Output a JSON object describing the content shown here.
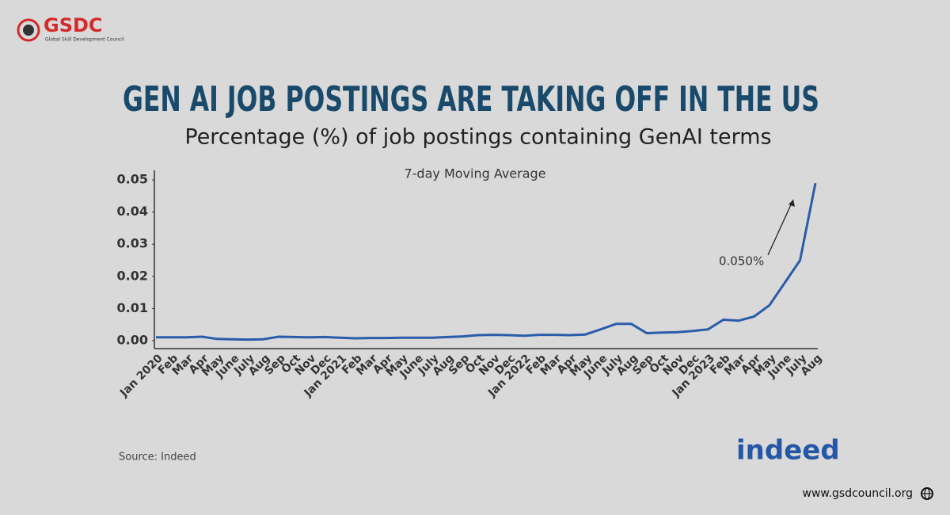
{
  "page": {
    "logo": "GSDC",
    "logo_tagline": "Global Skill Development Council",
    "brand": "indeed",
    "website": "www.gsdcouncil.org"
  },
  "chart_data": {
    "type": "line",
    "title": "GEN AI JOB POSTINGS ARE TAKING OFF IN THE US",
    "subtitle": "Percentage (%) of job postings containing GenAI terms",
    "note": "7-day Moving Average",
    "annotation": "0.050%",
    "source": "Source: Indeed",
    "categories": [
      "Jan 2020",
      "Feb",
      "Mar",
      "Apr",
      "May",
      "June",
      "July",
      "Aug",
      "Sep",
      "Oct",
      "Nov",
      "Dec",
      "Jan 2021",
      "Feb",
      "Mar",
      "Apr",
      "May",
      "June",
      "July",
      "Aug",
      "Sep",
      "Oct",
      "Nov",
      "Dec",
      "Jan 2022",
      "Feb",
      "Mar",
      "Apr",
      "May",
      "June",
      "July",
      "Aug",
      "Sep",
      "Oct",
      "Nov",
      "Dec",
      "Jan 2023",
      "Feb",
      "Mar",
      "Apr",
      "May",
      "June",
      "July",
      "Aug"
    ],
    "values": [
      0.001,
      0.001,
      0.001,
      0.0012,
      0.0005,
      0.0004,
      0.0003,
      0.0004,
      0.0012,
      0.0011,
      0.001,
      0.0011,
      0.0009,
      0.0007,
      0.0008,
      0.0008,
      0.0009,
      0.0009,
      0.0009,
      0.0011,
      0.0013,
      0.0017,
      0.0018,
      0.0017,
      0.0015,
      0.0018,
      0.0018,
      0.0017,
      0.0019,
      0.0035,
      0.0052,
      0.0052,
      0.0023,
      0.0025,
      0.0026,
      0.003,
      0.0035,
      0.0065,
      0.0062,
      0.0075,
      0.011,
      0.018,
      0.025,
      0.049
    ],
    "color": "#2a5caa",
    "ylim": [
      -0.0025,
      0.053
    ],
    "yticks": [
      {
        "value": 0,
        "label": "0.00"
      },
      0.01,
      0.02,
      0.03,
      0.04,
      0.05
    ],
    "grid": false
  }
}
